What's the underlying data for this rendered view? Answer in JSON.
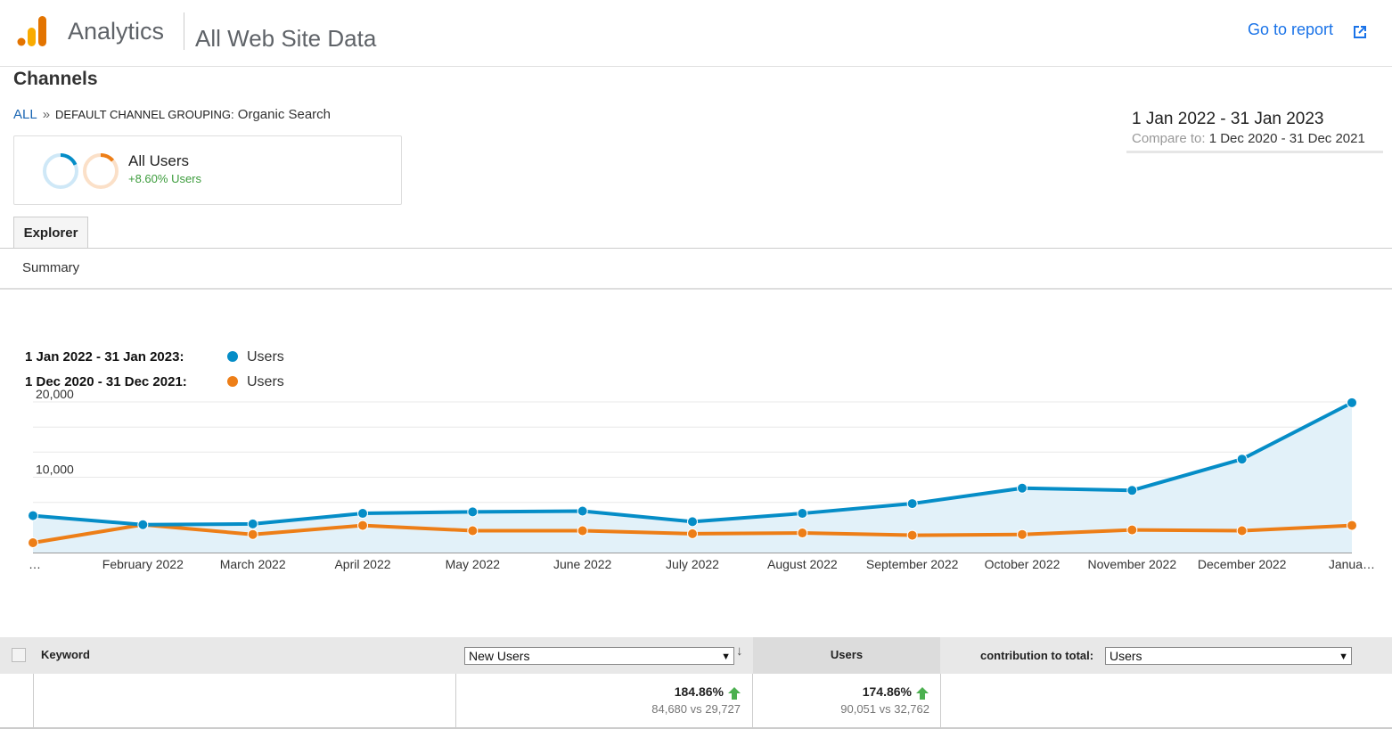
{
  "header": {
    "app_name": "Analytics",
    "property_name": "All Web Site Data",
    "go_to_report": "Go to report"
  },
  "page_title": "Channels",
  "breadcrumb": {
    "root": "ALL",
    "separator": "»",
    "dimension": "DEFAULT CHANNEL GROUPING:",
    "value": "Organic Search"
  },
  "segment": {
    "name": "All Users",
    "delta": "+8.60% Users"
  },
  "date_range": {
    "primary": "1 Jan 2022 - 31 Jan 2023",
    "compare_label": "Compare to:",
    "compare_value": "1 Dec 2020 - 31 Dec 2021"
  },
  "tabs": {
    "explorer": "Explorer",
    "summary": "Summary"
  },
  "colors": {
    "primary_series": "#058dc7",
    "compare_series": "#ed7e17",
    "accent_link": "#1a73e8",
    "positive": "#3c9c3c"
  },
  "chart_data": {
    "type": "line",
    "legend": [
      {
        "range": "1 Jan 2022 - 31 Jan 2023:",
        "metric": "Users",
        "color": "#058dc7"
      },
      {
        "range": "1 Dec 2020 - 31 Dec 2021:",
        "metric": "Users",
        "color": "#ed7e17"
      }
    ],
    "x_labels": [
      "…",
      "February 2022",
      "March 2022",
      "April 2022",
      "May 2022",
      "June 2022",
      "July 2022",
      "August 2022",
      "September 2022",
      "October 2022",
      "November 2022",
      "December 2022",
      "Janua…"
    ],
    "y_ticks": [
      "20,000",
      "10,000"
    ],
    "ylim": [
      0,
      20000
    ],
    "series": [
      {
        "name": "1 Jan 2022 - 31 Jan 2023",
        "area": true,
        "values": [
          4900,
          3700,
          3800,
          5200,
          5400,
          5500,
          4100,
          5200,
          6500,
          8550,
          8250,
          12400,
          19900
        ]
      },
      {
        "name": "1 Dec 2020 - 31 Dec 2021",
        "area": false,
        "values": [
          1300,
          3700,
          2400,
          3600,
          2900,
          2900,
          2500,
          2600,
          2300,
          2400,
          3000,
          2900,
          3600
        ]
      }
    ]
  },
  "table": {
    "header_keyword": "Keyword",
    "metric_select": "New Users",
    "header_users": "Users",
    "contribution_label": "contribution to total:",
    "contribution_select": "Users",
    "totals": {
      "new_users_change": "184.86%",
      "new_users_compare": "84,680 vs 29,727",
      "users_change": "174.86%",
      "users_compare": "90,051 vs 32,762"
    }
  }
}
